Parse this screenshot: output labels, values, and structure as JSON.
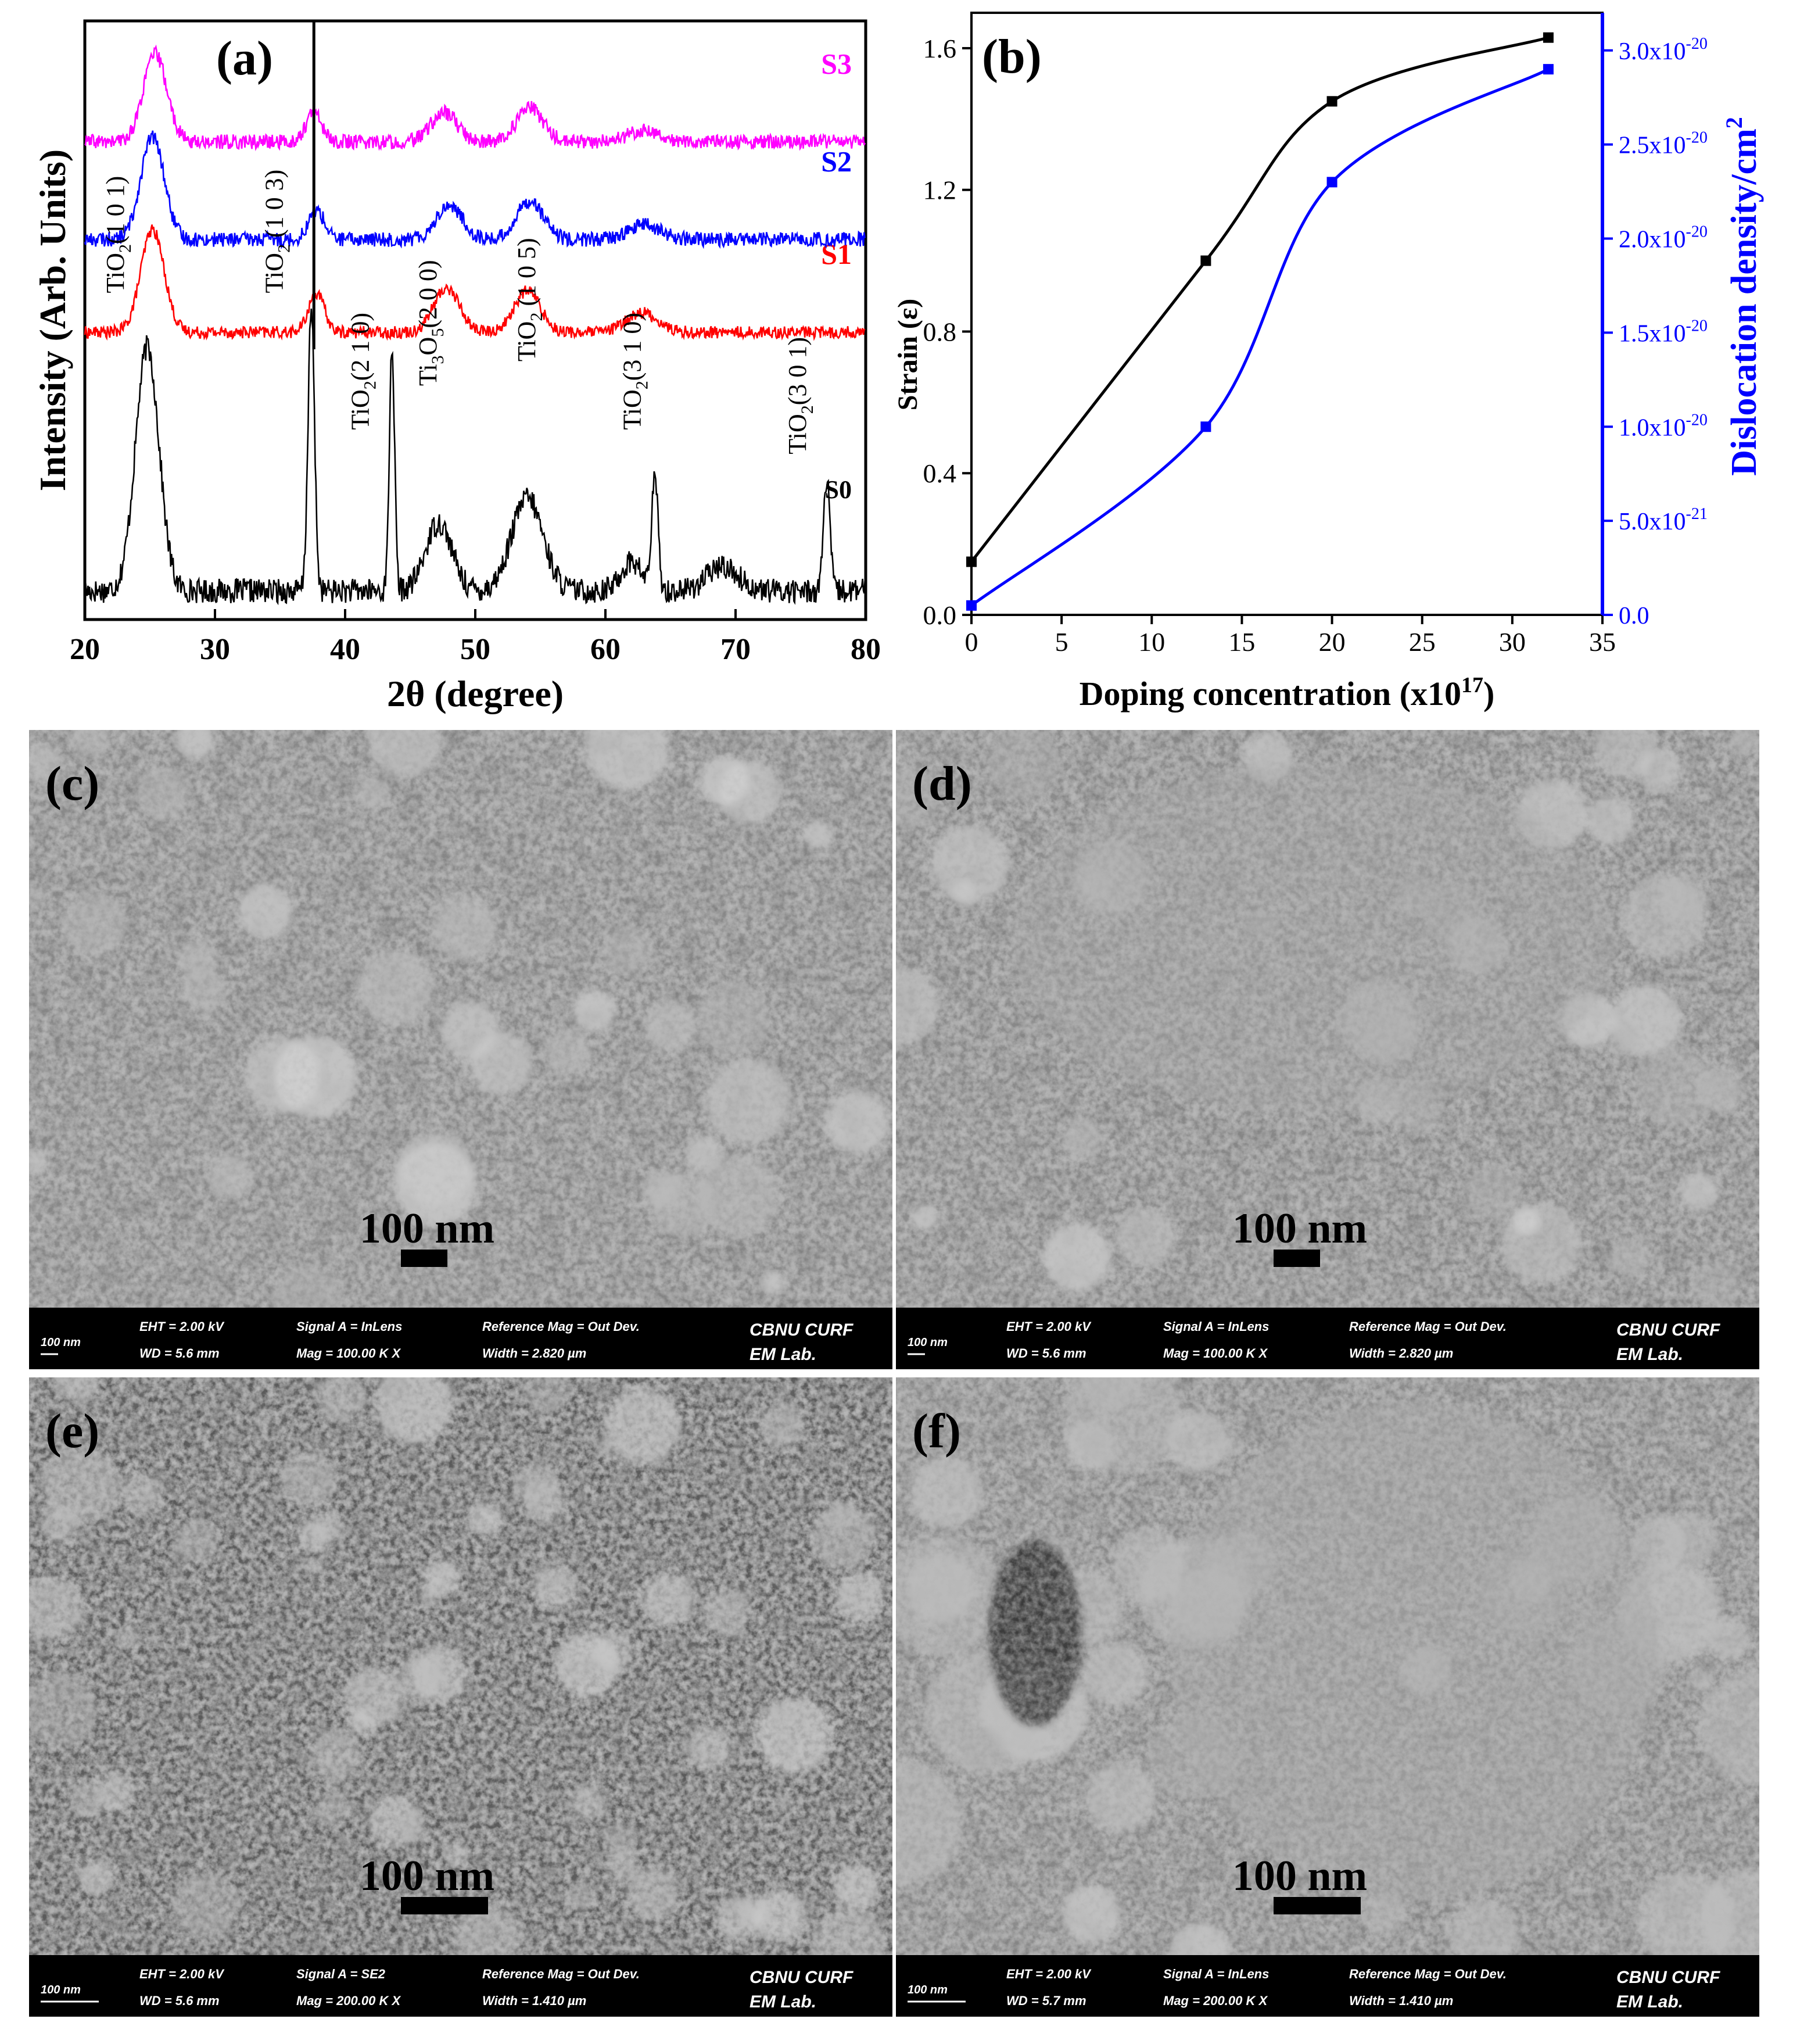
{
  "chart_data": [
    {
      "panel_label": "(a)",
      "type": "line",
      "xlabel": "2θ (degree)",
      "ylabel": "Intensity (Arb. Units)",
      "xlim": [
        20,
        80
      ],
      "xticks": [
        20,
        30,
        40,
        50,
        60,
        70,
        80
      ],
      "series": [
        {
          "name": "S0",
          "color": "#000000",
          "peaks": [
            [
              24.8,
              1.0,
              0.9
            ],
            [
              37.4,
              1.15,
              0.25
            ],
            [
              43.6,
              1.0,
              0.2
            ],
            [
              47.2,
              0.28,
              1.0
            ],
            [
              54.0,
              0.38,
              1.2
            ],
            [
              62.0,
              0.12,
              0.8
            ],
            [
              63.8,
              0.45,
              0.25
            ],
            [
              69.0,
              0.1,
              1.2
            ],
            [
              77.0,
              0.45,
              0.25
            ]
          ],
          "base": 0.06,
          "noise": 0.05
        },
        {
          "name": "S1",
          "color": "#ff0000",
          "peaks": [
            [
              25.2,
              0.42,
              0.9
            ],
            [
              37.8,
              0.16,
              0.6
            ],
            [
              47.8,
              0.18,
              1.0
            ],
            [
              54.0,
              0.17,
              1.0
            ],
            [
              62.8,
              0.08,
              1.2
            ]
          ],
          "base": 1.12,
          "noise": 0.025
        },
        {
          "name": "S2",
          "color": "#0000ff",
          "peaks": [
            [
              25.2,
              0.42,
              0.9
            ],
            [
              37.8,
              0.12,
              0.6
            ],
            [
              48.0,
              0.14,
              1.0
            ],
            [
              54.2,
              0.16,
              1.0
            ],
            [
              63.0,
              0.06,
              1.2
            ]
          ],
          "base": 1.5,
          "noise": 0.03
        },
        {
          "name": "S3",
          "color": "#ff00ff",
          "peaks": [
            [
              25.4,
              0.36,
              0.9
            ],
            [
              37.6,
              0.12,
              0.6
            ],
            [
              47.6,
              0.12,
              1.0
            ],
            [
              54.2,
              0.14,
              1.0
            ],
            [
              63.0,
              0.05,
              1.2
            ]
          ],
          "base": 1.9,
          "noise": 0.03
        }
      ],
      "sharp_line_x": 37.6,
      "annotations": [
        {
          "base": "TiO",
          "sub": "2",
          "rest": "(1 0 1)",
          "x": 23.0,
          "y": 1.28
        },
        {
          "base": "TiO",
          "sub": "2",
          "rest": " (1 0 3)",
          "x": 35.2,
          "y": 1.28
        },
        {
          "base": "TiO",
          "sub": "2",
          "rest": "(2 1 0)",
          "x": 41.8,
          "y": 0.72
        },
        {
          "base": "Ti",
          "sub": "3",
          "mid": "O",
          "sub2": "5",
          "rest": "(2 0 0)",
          "x": 47.0,
          "y": 0.9
        },
        {
          "base": "TiO",
          "sub": "2",
          "rest": " (1 0 5)",
          "x": 54.6,
          "y": 1.0
        },
        {
          "base": "TiO",
          "sub": "2",
          "rest": "(3 1 0)",
          "x": 62.7,
          "y": 0.72
        },
        {
          "base": "TiO",
          "sub": "2",
          "rest": "(3 0 1)",
          "x": 75.4,
          "y": 0.62
        }
      ]
    },
    {
      "panel_label": "(b)",
      "type": "line",
      "xlabel": "Doping concentration (x10",
      "xlabel_sup": "17",
      "xlabel_end": ")",
      "ylabel": "Strain (ε)",
      "y2label": "Dislocation density/cm",
      "y2label_sup": "2",
      "xlim": [
        0,
        35
      ],
      "ylim": [
        0.0,
        1.7
      ],
      "y2lim": [
        0,
        3.2e-20
      ],
      "xticks": [
        0,
        5,
        10,
        15,
        20,
        25,
        30,
        35
      ],
      "yticks": [
        "0.0",
        "0.4",
        "0.8",
        "1.2",
        "1.6"
      ],
      "y2ticks": [
        {
          "m": "0.0",
          "e": ""
        },
        {
          "m": "5.0x10",
          "e": "-21"
        },
        {
          "m": "1.0x10",
          "e": "-20"
        },
        {
          "m": "1.5x10",
          "e": "-20"
        },
        {
          "m": "2.0x10",
          "e": "-20"
        },
        {
          "m": "2.5x10",
          "e": "-20"
        },
        {
          "m": "3.0x10",
          "e": "-20"
        }
      ],
      "series": [
        {
          "name": "",
          "axis": "left",
          "color": "#000000",
          "x": [
            0,
            13,
            20,
            32
          ],
          "y": [
            0.15,
            1.0,
            1.45,
            1.63
          ]
        },
        {
          "name": "",
          "axis": "right",
          "color": "#0000ff",
          "x": [
            0,
            13,
            20,
            32
          ],
          "y": [
            5e-22,
            1e-20,
            2.3e-20,
            2.9e-20
          ]
        }
      ]
    }
  ],
  "sem_panels": [
    {
      "label": "(c)",
      "scale_bar": "100 nm",
      "bar_label": "100 nm",
      "eht": "EHT =  2.00 kV",
      "wd": "WD =  5.6 mm",
      "signal": "Signal A = InLens",
      "mag": "Mag =  100.00 K X",
      "ref": "Reference Mag = Out Dev.",
      "width": "Width = 2.820 µm",
      "org1": "CBNU CURF",
      "org2": "EM Lab."
    },
    {
      "label": "(d)",
      "scale_bar": "100 nm",
      "bar_label": "100 nm",
      "eht": "EHT =  2.00 kV",
      "wd": "WD =  5.6 mm",
      "signal": "Signal A = InLens",
      "mag": "Mag =  100.00 K X",
      "ref": "Reference Mag = Out Dev.",
      "width": "Width = 2.820 µm",
      "org1": "CBNU CURF",
      "org2": "EM Lab."
    },
    {
      "label": "(e)",
      "scale_bar": "100 nm",
      "bar_label": "100 nm",
      "eht": "EHT =  2.00 kV",
      "wd": "WD =  5.6 mm",
      "signal": "Signal A = SE2",
      "mag": "Mag =  200.00 K X",
      "ref": "Reference Mag = Out Dev.",
      "width": "Width = 1.410 µm",
      "org1": "CBNU CURF",
      "org2": "EM Lab."
    },
    {
      "label": "(f)",
      "scale_bar": "100 nm",
      "bar_label": "100 nm",
      "eht": "EHT =  2.00 kV",
      "wd": "WD =  5.7 mm",
      "signal": "Signal A = InLens",
      "mag": "Mag =  200.00 K X",
      "ref": "Reference Mag = Out Dev.",
      "width": "Width = 1.410 µm",
      "org1": "CBNU CURF",
      "org2": "EM Lab."
    }
  ]
}
